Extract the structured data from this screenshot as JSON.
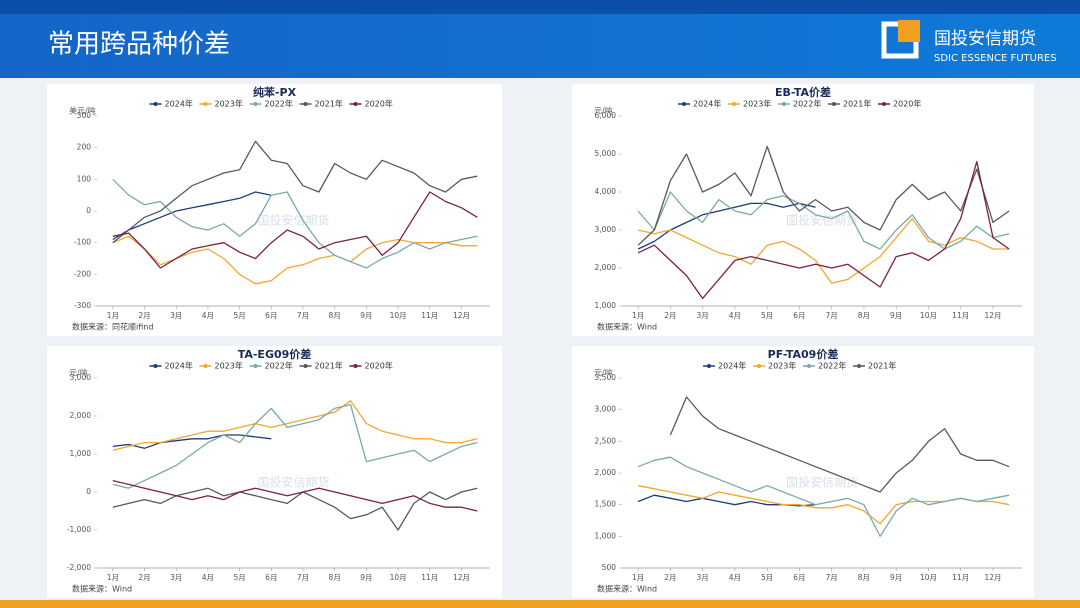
{
  "header": {
    "title": "常用跨品种价差",
    "logo_cn": "国投安信期货",
    "logo_en": "SDIC ESSENCE FUTURES"
  },
  "watermark": "国投安信期货",
  "chart_data": [
    {
      "type": "line",
      "title": "纯苯-PX",
      "y_label": "美元/吨",
      "source": "数据来源：同花顺ifind",
      "x": [
        1,
        1.5,
        2,
        2.5,
        3,
        3.5,
        4,
        4.5,
        5,
        5.5,
        6,
        6.5,
        7,
        7.5,
        8,
        8.5,
        9,
        9.5,
        10,
        10.5,
        11,
        11.5,
        12,
        12.5
      ],
      "xlim": [
        0.5,
        12.9
      ],
      "xticks": [
        {
          "value": 1,
          "label": "1月"
        },
        {
          "value": 2,
          "label": "2月"
        },
        {
          "value": 3,
          "label": "3月"
        },
        {
          "value": 4,
          "label": "4月"
        },
        {
          "value": 5,
          "label": "5月"
        },
        {
          "value": 6,
          "label": "6月"
        },
        {
          "value": 7,
          "label": "7月"
        },
        {
          "value": 8,
          "label": "8月"
        },
        {
          "value": 9,
          "label": "9月"
        },
        {
          "value": 10,
          "label": "10月"
        },
        {
          "value": 11,
          "label": "11月"
        },
        {
          "value": 12,
          "label": "12月"
        }
      ],
      "ylim": [
        -300,
        300
      ],
      "yticks": [
        -300,
        -200,
        -100,
        0,
        100,
        200,
        300
      ],
      "series": [
        {
          "name": "2024年",
          "color": "#1f3a7a",
          "values": [
            -90,
            -60,
            -40,
            -20,
            0,
            10,
            20,
            30,
            40,
            60,
            50,
            null,
            null,
            null,
            null,
            null,
            null,
            null,
            null,
            null,
            null,
            null,
            null,
            null
          ]
        },
        {
          "name": "2023年",
          "color": "#f0a830",
          "values": [
            -100,
            -80,
            -120,
            -170,
            -150,
            -130,
            -120,
            -150,
            -200,
            -230,
            -220,
            -180,
            -170,
            -150,
            -140,
            -160,
            -120,
            -100,
            -90,
            -100,
            -100,
            -100,
            -110,
            -110
          ]
        },
        {
          "name": "2022年",
          "color": "#7aa9a8",
          "values": [
            100,
            50,
            20,
            30,
            -20,
            -50,
            -60,
            -40,
            -80,
            -40,
            50,
            60,
            -30,
            -100,
            -140,
            -160,
            -180,
            -150,
            -130,
            -100,
            -120,
            -100,
            -90,
            -80
          ]
        },
        {
          "name": "2021年",
          "color": "#595959",
          "values": [
            -100,
            -60,
            -20,
            0,
            40,
            80,
            100,
            120,
            130,
            220,
            160,
            150,
            80,
            60,
            150,
            120,
            100,
            160,
            140,
            120,
            80,
            60,
            100,
            110
          ]
        },
        {
          "name": "2020年",
          "color": "#7b2142",
          "values": [
            -80,
            -70,
            -120,
            -180,
            -150,
            -120,
            -110,
            -100,
            -130,
            -150,
            -100,
            -60,
            -80,
            -120,
            -100,
            -90,
            -80,
            -140,
            -100,
            -20,
            60,
            30,
            10,
            -20
          ]
        }
      ]
    },
    {
      "type": "line",
      "title": "EB-TA价差",
      "y_label": "元/吨",
      "source": "数据来源：Wind",
      "x": [
        1,
        1.5,
        2,
        2.5,
        3,
        3.5,
        4,
        4.5,
        5,
        5.5,
        6,
        6.5,
        7,
        7.5,
        8,
        8.5,
        9,
        9.5,
        10,
        10.5,
        11,
        11.5,
        12,
        12.5
      ],
      "xlim": [
        0.5,
        12.9
      ],
      "xticks": [
        {
          "value": 1,
          "label": "1月"
        },
        {
          "value": 2,
          "label": "2月"
        },
        {
          "value": 3,
          "label": "3月"
        },
        {
          "value": 4,
          "label": "4月"
        },
        {
          "value": 5,
          "label": "5月"
        },
        {
          "value": 6,
          "label": "6月"
        },
        {
          "value": 7,
          "label": "7月"
        },
        {
          "value": 8,
          "label": "8月"
        },
        {
          "value": 9,
          "label": "9月"
        },
        {
          "value": 10,
          "label": "10月"
        },
        {
          "value": 11,
          "label": "11月"
        },
        {
          "value": 12,
          "label": "12月"
        }
      ],
      "ylim": [
        1000,
        6000
      ],
      "yticks": [
        {
          "value": 1000,
          "label": "1,000"
        },
        {
          "value": 2000,
          "label": "2,000"
        },
        {
          "value": 3000,
          "label": "3,000"
        },
        {
          "value": 4000,
          "label": "4,000"
        },
        {
          "value": 5000,
          "label": "5,000"
        },
        {
          "value": 6000,
          "label": "6,000"
        }
      ],
      "series": [
        {
          "name": "2024年",
          "color": "#1f3a7a",
          "values": [
            2500,
            2700,
            3000,
            3200,
            3400,
            3500,
            3600,
            3700,
            3700,
            3600,
            3700,
            3600,
            null,
            null,
            null,
            null,
            null,
            null,
            null,
            null,
            null,
            null,
            null,
            null
          ]
        },
        {
          "name": "2023年",
          "color": "#f0a830",
          "values": [
            3000,
            2900,
            3000,
            2800,
            2600,
            2400,
            2300,
            2100,
            2600,
            2700,
            2500,
            2200,
            1600,
            1700,
            2000,
            2300,
            2800,
            3300,
            2700,
            2600,
            2800,
            2700,
            2500,
            2500
          ]
        },
        {
          "name": "2022年",
          "color": "#7aa9a8",
          "values": [
            3500,
            3000,
            4000,
            3500,
            3200,
            3800,
            3500,
            3400,
            3800,
            3900,
            3700,
            3400,
            3300,
            3500,
            2700,
            2500,
            3000,
            3400,
            2800,
            2500,
            2700,
            3100,
            2800,
            2900
          ]
        },
        {
          "name": "2021年",
          "color": "#595959",
          "values": [
            2600,
            3000,
            4300,
            5000,
            4000,
            4200,
            4500,
            3900,
            5200,
            4000,
            3500,
            3800,
            3500,
            3600,
            3200,
            3000,
            3800,
            4200,
            3800,
            4000,
            3500,
            4600,
            3200,
            3500
          ]
        },
        {
          "name": "2020年",
          "color": "#7b2142",
          "values": [
            2400,
            2600,
            2200,
            1800,
            1200,
            1700,
            2200,
            2300,
            2200,
            2100,
            2000,
            2100,
            2000,
            2100,
            1800,
            1500,
            2300,
            2400,
            2200,
            2500,
            3300,
            4800,
            2800,
            2500
          ]
        }
      ]
    },
    {
      "type": "line",
      "title": "TA-EG09价差",
      "y_label": "元/吨",
      "source": "数据来源：Wind",
      "x": [
        1,
        1.5,
        2,
        2.5,
        3,
        3.5,
        4,
        4.5,
        5,
        5.5,
        6,
        6.5,
        7,
        7.5,
        8,
        8.5,
        9,
        9.5,
        10,
        10.5,
        11,
        11.5,
        12,
        12.5
      ],
      "xlim": [
        0.5,
        12.9
      ],
      "xticks": [
        {
          "value": 1,
          "label": "1月"
        },
        {
          "value": 2,
          "label": "2月"
        },
        {
          "value": 3,
          "label": "3月"
        },
        {
          "value": 4,
          "label": "4月"
        },
        {
          "value": 5,
          "label": "5月"
        },
        {
          "value": 6,
          "label": "6月"
        },
        {
          "value": 7,
          "label": "7月"
        },
        {
          "value": 8,
          "label": "8月"
        },
        {
          "value": 9,
          "label": "9月"
        },
        {
          "value": 10,
          "label": "10月"
        },
        {
          "value": 11,
          "label": "11月"
        },
        {
          "value": 12,
          "label": "12月"
        }
      ],
      "ylim": [
        -2000,
        3000
      ],
      "yticks": [
        {
          "value": -2000,
          "label": "-2,000"
        },
        {
          "value": -1000,
          "label": "-1,000"
        },
        0,
        {
          "value": 1000,
          "label": "1,000"
        },
        {
          "value": 2000,
          "label": "2,000"
        },
        {
          "value": 3000,
          "label": "3,000"
        }
      ],
      "series": [
        {
          "name": "2024年",
          "color": "#1f3a7a",
          "values": [
            1200,
            1250,
            1150,
            1300,
            1350,
            1400,
            1400,
            1500,
            1500,
            1450,
            1400,
            null,
            null,
            null,
            null,
            null,
            null,
            null,
            null,
            null,
            null,
            null,
            null,
            null
          ]
        },
        {
          "name": "2023年",
          "color": "#f0a830",
          "values": [
            1100,
            1200,
            1300,
            1300,
            1400,
            1500,
            1600,
            1600,
            1700,
            1800,
            1700,
            1800,
            1900,
            2000,
            2100,
            2400,
            1800,
            1600,
            1500,
            1400,
            1400,
            1300,
            1300,
            1400
          ]
        },
        {
          "name": "2022年",
          "color": "#7aa9a8",
          "values": [
            200,
            100,
            300,
            500,
            700,
            1000,
            1300,
            1500,
            1300,
            1800,
            2200,
            1700,
            1800,
            1900,
            2200,
            2300,
            800,
            900,
            1000,
            1100,
            800,
            1000,
            1200,
            1300
          ]
        },
        {
          "name": "2021年",
          "color": "#595959",
          "values": [
            -400,
            -300,
            -200,
            -300,
            -100,
            0,
            100,
            -100,
            0,
            -100,
            -200,
            -300,
            0,
            -200,
            -400,
            -700,
            -600,
            -400,
            -1000,
            -300,
            0,
            -200,
            0,
            100
          ]
        },
        {
          "name": "2020年",
          "color": "#7b2142",
          "values": [
            300,
            200,
            100,
            0,
            -100,
            -200,
            -100,
            -200,
            0,
            100,
            0,
            -100,
            0,
            100,
            0,
            -100,
            -200,
            -300,
            -200,
            -100,
            -300,
            -400,
            -400,
            -500
          ]
        }
      ]
    },
    {
      "type": "line",
      "title": "PF-TA09价差",
      "y_label": "元/吨",
      "source": "数据来源：Wind",
      "x": [
        1,
        1.5,
        2,
        2.5,
        3,
        3.5,
        4,
        4.5,
        5,
        5.5,
        6,
        6.5,
        7,
        7.5,
        8,
        8.5,
        9,
        9.5,
        10,
        10.5,
        11,
        11.5,
        12,
        12.5
      ],
      "xlim": [
        0.5,
        12.9
      ],
      "xticks": [
        {
          "value": 1,
          "label": "1月"
        },
        {
          "value": 2,
          "label": "2月"
        },
        {
          "value": 3,
          "label": "3月"
        },
        {
          "value": 4,
          "label": "4月"
        },
        {
          "value": 5,
          "label": "5月"
        },
        {
          "value": 6,
          "label": "6月"
        },
        {
          "value": 7,
          "label": "7月"
        },
        {
          "value": 8,
          "label": "8月"
        },
        {
          "value": 9,
          "label": "9月"
        },
        {
          "value": 10,
          "label": "10月"
        },
        {
          "value": 11,
          "label": "11月"
        },
        {
          "value": 12,
          "label": "12月"
        }
      ],
      "ylim": [
        500,
        3500
      ],
      "yticks": [
        500,
        {
          "value": 1000,
          "label": "1,000"
        },
        {
          "value": 1500,
          "label": "1,500"
        },
        {
          "value": 2000,
          "label": "2,000"
        },
        {
          "value": 2500,
          "label": "2,500"
        },
        {
          "value": 3000,
          "label": "3,000"
        },
        {
          "value": 3500,
          "label": "3,500"
        }
      ],
      "series": [
        {
          "name": "2024年",
          "color": "#1f3a7a",
          "values": [
            1550,
            1650,
            1600,
            1550,
            1600,
            1550,
            1500,
            1550,
            1500,
            1500,
            1480,
            1500,
            null,
            null,
            null,
            null,
            null,
            null,
            null,
            null,
            null,
            null,
            null,
            null
          ]
        },
        {
          "name": "2023年",
          "color": "#f0a830",
          "values": [
            1800,
            1750,
            1700,
            1650,
            1600,
            1700,
            1650,
            1600,
            1550,
            1500,
            1500,
            1450,
            1450,
            1500,
            1400,
            1200,
            1500,
            1550,
            1550,
            1550,
            1600,
            1550,
            1550,
            1500
          ]
        },
        {
          "name": "2022年",
          "color": "#7aa9a8",
          "values": [
            2100,
            2200,
            2250,
            2100,
            2000,
            1900,
            1800,
            1700,
            1800,
            1700,
            1600,
            1500,
            1550,
            1600,
            1500,
            1000,
            1400,
            1600,
            1500,
            1550,
            1600,
            1550,
            1600,
            1650
          ]
        },
        {
          "name": "2021年",
          "color": "#595959",
          "values": [
            null,
            null,
            2600,
            3200,
            2900,
            2700,
            2600,
            2500,
            2400,
            2300,
            2200,
            2100,
            2000,
            1900,
            1800,
            1700,
            2000,
            2200,
            2500,
            2700,
            2300,
            2200,
            2200,
            2100
          ]
        }
      ]
    }
  ]
}
